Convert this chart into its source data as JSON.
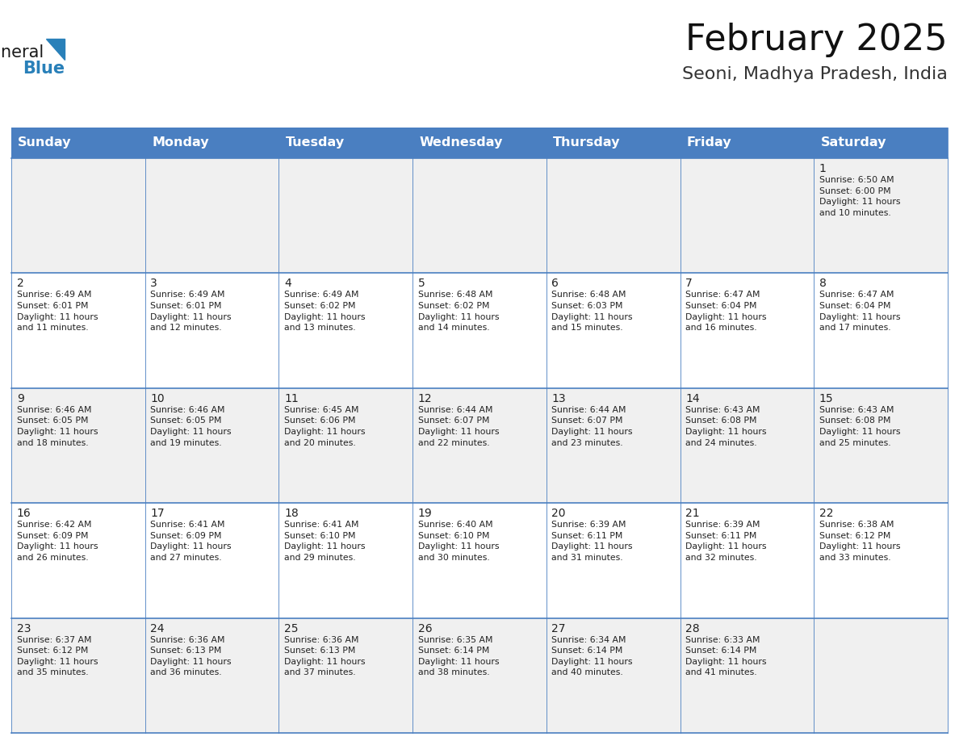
{
  "title": "February 2025",
  "subtitle": "Seoni, Madhya Pradesh, India",
  "days_of_week": [
    "Sunday",
    "Monday",
    "Tuesday",
    "Wednesday",
    "Thursday",
    "Friday",
    "Saturday"
  ],
  "header_bg": "#4A7FC1",
  "header_text": "#FFFFFF",
  "header_fontsize": 11.5,
  "cell_bg_light": "#F0F0F0",
  "cell_bg_white": "#FFFFFF",
  "cell_border_color": "#4A7FC1",
  "day_number_color": "#222222",
  "day_number_fontsize": 10,
  "info_fontsize": 7.8,
  "info_color": "#222222",
  "title_fontsize": 32,
  "subtitle_fontsize": 16,
  "logo_general_color": "#1a1a1a",
  "logo_blue_color": "#2980B9",
  "logo_fontsize": 15,
  "calendar_data": [
    [
      {
        "day": null,
        "info": ""
      },
      {
        "day": null,
        "info": ""
      },
      {
        "day": null,
        "info": ""
      },
      {
        "day": null,
        "info": ""
      },
      {
        "day": null,
        "info": ""
      },
      {
        "day": null,
        "info": ""
      },
      {
        "day": 1,
        "info": "Sunrise: 6:50 AM\nSunset: 6:00 PM\nDaylight: 11 hours\nand 10 minutes."
      }
    ],
    [
      {
        "day": 2,
        "info": "Sunrise: 6:49 AM\nSunset: 6:01 PM\nDaylight: 11 hours\nand 11 minutes."
      },
      {
        "day": 3,
        "info": "Sunrise: 6:49 AM\nSunset: 6:01 PM\nDaylight: 11 hours\nand 12 minutes."
      },
      {
        "day": 4,
        "info": "Sunrise: 6:49 AM\nSunset: 6:02 PM\nDaylight: 11 hours\nand 13 minutes."
      },
      {
        "day": 5,
        "info": "Sunrise: 6:48 AM\nSunset: 6:02 PM\nDaylight: 11 hours\nand 14 minutes."
      },
      {
        "day": 6,
        "info": "Sunrise: 6:48 AM\nSunset: 6:03 PM\nDaylight: 11 hours\nand 15 minutes."
      },
      {
        "day": 7,
        "info": "Sunrise: 6:47 AM\nSunset: 6:04 PM\nDaylight: 11 hours\nand 16 minutes."
      },
      {
        "day": 8,
        "info": "Sunrise: 6:47 AM\nSunset: 6:04 PM\nDaylight: 11 hours\nand 17 minutes."
      }
    ],
    [
      {
        "day": 9,
        "info": "Sunrise: 6:46 AM\nSunset: 6:05 PM\nDaylight: 11 hours\nand 18 minutes."
      },
      {
        "day": 10,
        "info": "Sunrise: 6:46 AM\nSunset: 6:05 PM\nDaylight: 11 hours\nand 19 minutes."
      },
      {
        "day": 11,
        "info": "Sunrise: 6:45 AM\nSunset: 6:06 PM\nDaylight: 11 hours\nand 20 minutes."
      },
      {
        "day": 12,
        "info": "Sunrise: 6:44 AM\nSunset: 6:07 PM\nDaylight: 11 hours\nand 22 minutes."
      },
      {
        "day": 13,
        "info": "Sunrise: 6:44 AM\nSunset: 6:07 PM\nDaylight: 11 hours\nand 23 minutes."
      },
      {
        "day": 14,
        "info": "Sunrise: 6:43 AM\nSunset: 6:08 PM\nDaylight: 11 hours\nand 24 minutes."
      },
      {
        "day": 15,
        "info": "Sunrise: 6:43 AM\nSunset: 6:08 PM\nDaylight: 11 hours\nand 25 minutes."
      }
    ],
    [
      {
        "day": 16,
        "info": "Sunrise: 6:42 AM\nSunset: 6:09 PM\nDaylight: 11 hours\nand 26 minutes."
      },
      {
        "day": 17,
        "info": "Sunrise: 6:41 AM\nSunset: 6:09 PM\nDaylight: 11 hours\nand 27 minutes."
      },
      {
        "day": 18,
        "info": "Sunrise: 6:41 AM\nSunset: 6:10 PM\nDaylight: 11 hours\nand 29 minutes."
      },
      {
        "day": 19,
        "info": "Sunrise: 6:40 AM\nSunset: 6:10 PM\nDaylight: 11 hours\nand 30 minutes."
      },
      {
        "day": 20,
        "info": "Sunrise: 6:39 AM\nSunset: 6:11 PM\nDaylight: 11 hours\nand 31 minutes."
      },
      {
        "day": 21,
        "info": "Sunrise: 6:39 AM\nSunset: 6:11 PM\nDaylight: 11 hours\nand 32 minutes."
      },
      {
        "day": 22,
        "info": "Sunrise: 6:38 AM\nSunset: 6:12 PM\nDaylight: 11 hours\nand 33 minutes."
      }
    ],
    [
      {
        "day": 23,
        "info": "Sunrise: 6:37 AM\nSunset: 6:12 PM\nDaylight: 11 hours\nand 35 minutes."
      },
      {
        "day": 24,
        "info": "Sunrise: 6:36 AM\nSunset: 6:13 PM\nDaylight: 11 hours\nand 36 minutes."
      },
      {
        "day": 25,
        "info": "Sunrise: 6:36 AM\nSunset: 6:13 PM\nDaylight: 11 hours\nand 37 minutes."
      },
      {
        "day": 26,
        "info": "Sunrise: 6:35 AM\nSunset: 6:14 PM\nDaylight: 11 hours\nand 38 minutes."
      },
      {
        "day": 27,
        "info": "Sunrise: 6:34 AM\nSunset: 6:14 PM\nDaylight: 11 hours\nand 40 minutes."
      },
      {
        "day": 28,
        "info": "Sunrise: 6:33 AM\nSunset: 6:14 PM\nDaylight: 11 hours\nand 41 minutes."
      },
      {
        "day": null,
        "info": ""
      }
    ]
  ],
  "row_backgrounds": [
    "#F0F0F0",
    "#FFFFFF",
    "#F0F0F0",
    "#FFFFFF",
    "#F0F0F0"
  ]
}
